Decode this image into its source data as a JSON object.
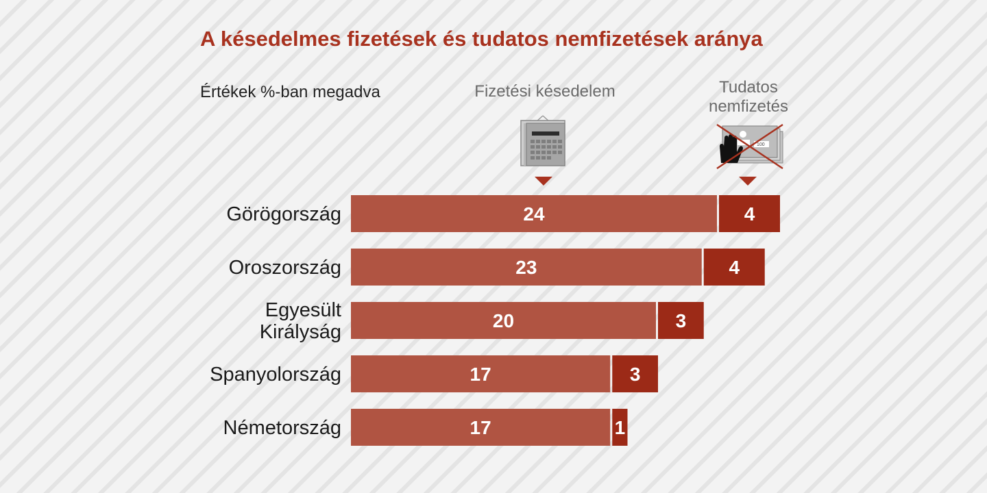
{
  "chart_data": {
    "type": "bar",
    "title": "A késedelmes fizetések és tudatos nemfizetések aránya",
    "subtitle": "Értékek %-ban megadva",
    "categories": [
      "Görögország",
      "Oroszország",
      "Egyesült Királyság",
      "Spanyolország",
      "Németország"
    ],
    "category_lines": [
      [
        "Görögország"
      ],
      [
        "Oroszország"
      ],
      [
        "Egyesült",
        "Királyság"
      ],
      [
        "Spanyolország"
      ],
      [
        "Németország"
      ]
    ],
    "series": [
      {
        "name": "Fizetési késedelem",
        "values": [
          24,
          23,
          20,
          17,
          17
        ],
        "color": "#b05442"
      },
      {
        "name": "Tudatos nemfizetés",
        "name_lines": [
          "Tudatos",
          "nemfizetés"
        ],
        "values": [
          4,
          4,
          3,
          3,
          1
        ],
        "color": "#9c2a17"
      }
    ],
    "stacked": true,
    "orientation": "horizontal",
    "grid": false
  },
  "colors": {
    "title": "#a8321f",
    "background": "#f3f3f3",
    "stripe": "#e4e4e4"
  },
  "icons": {
    "late": "calendar-icon",
    "intent": "crossed-out-money-stop-hand-icon"
  }
}
